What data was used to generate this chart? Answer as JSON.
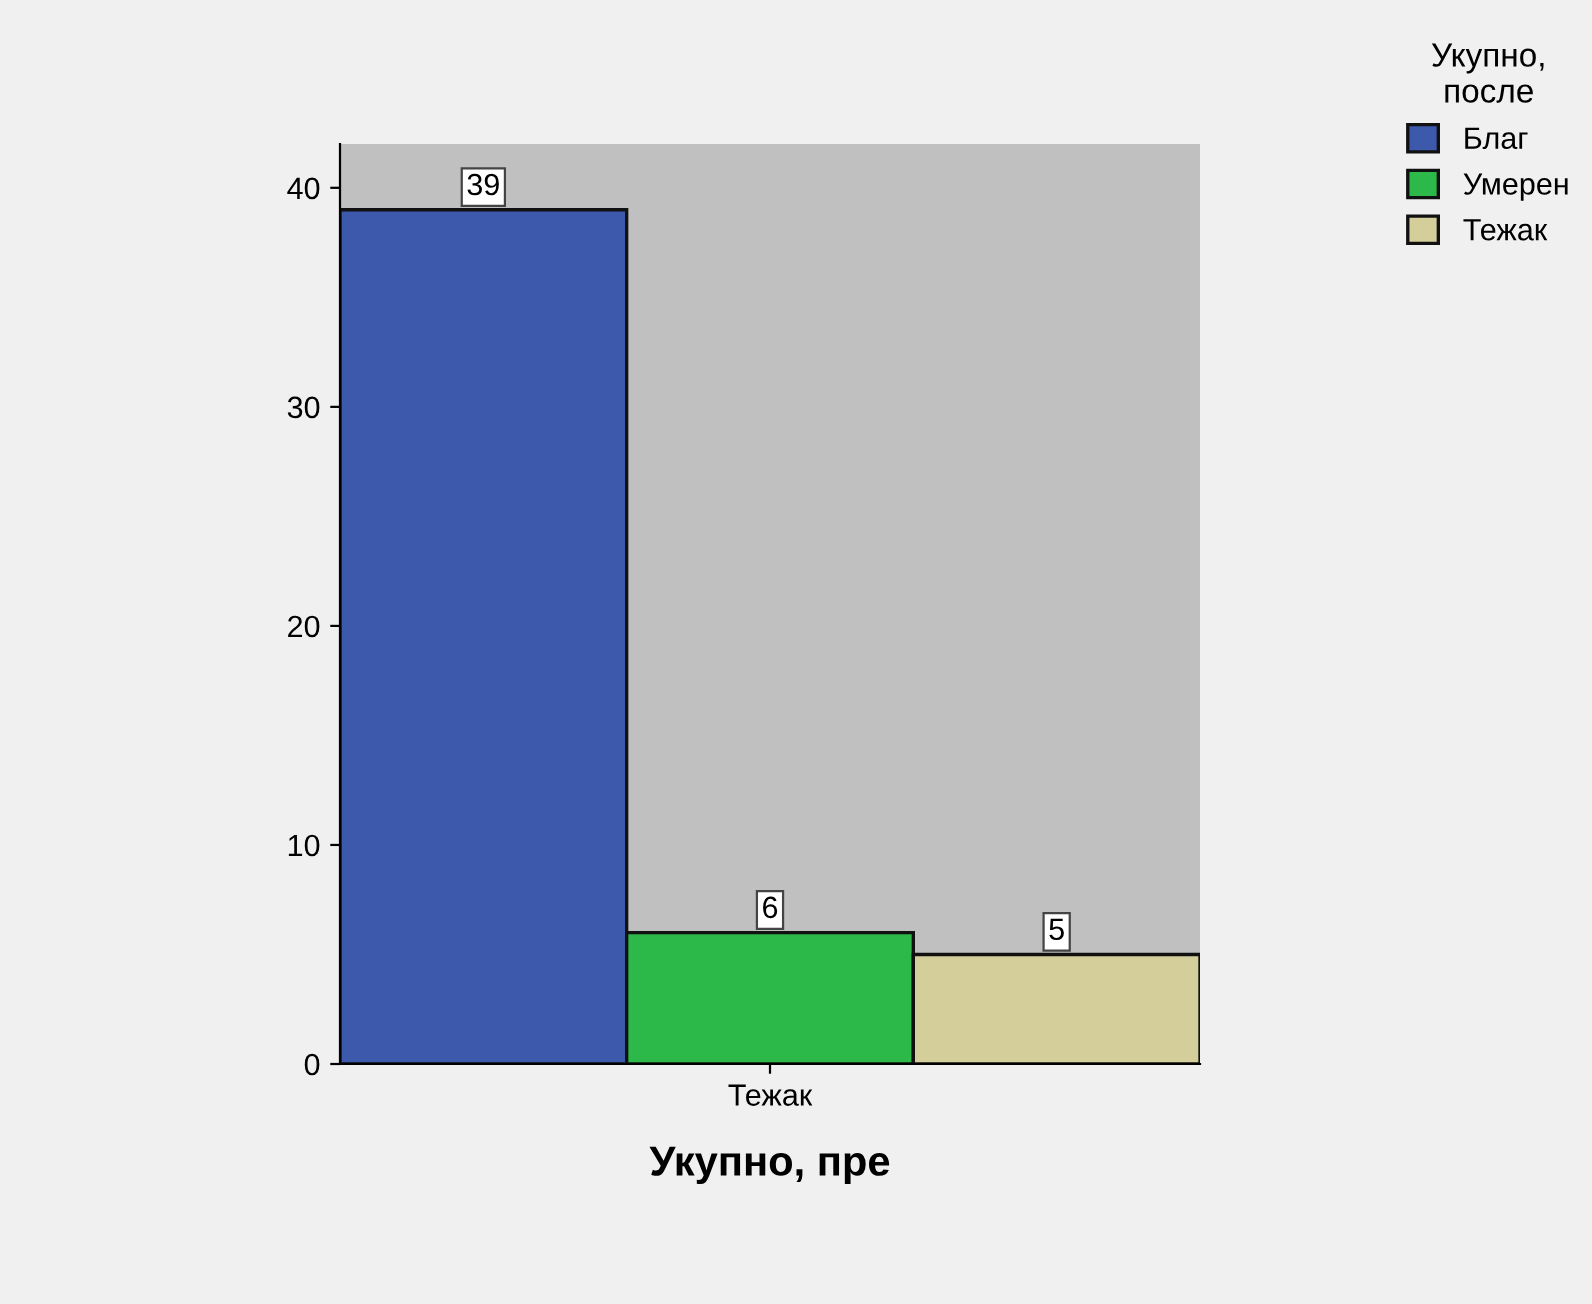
{
  "chart_data": {
    "type": "bar",
    "xlabel": "Укупно, пре",
    "legend_title": "Укупно, после",
    "categories": [
      "Тежак"
    ],
    "series": [
      {
        "name": "Благ",
        "color": "#3d59ab",
        "values": [
          39
        ]
      },
      {
        "name": "Умерен",
        "color": "#2db84a",
        "values": [
          6
        ]
      },
      {
        "name": "Тежак",
        "color": "#d4cf9a",
        "values": [
          5
        ]
      }
    ],
    "ylim": [
      0,
      42
    ],
    "yticks": [
      0,
      10,
      20,
      30,
      40
    ],
    "data_labels": true,
    "grid": false,
    "legend": "top right"
  }
}
